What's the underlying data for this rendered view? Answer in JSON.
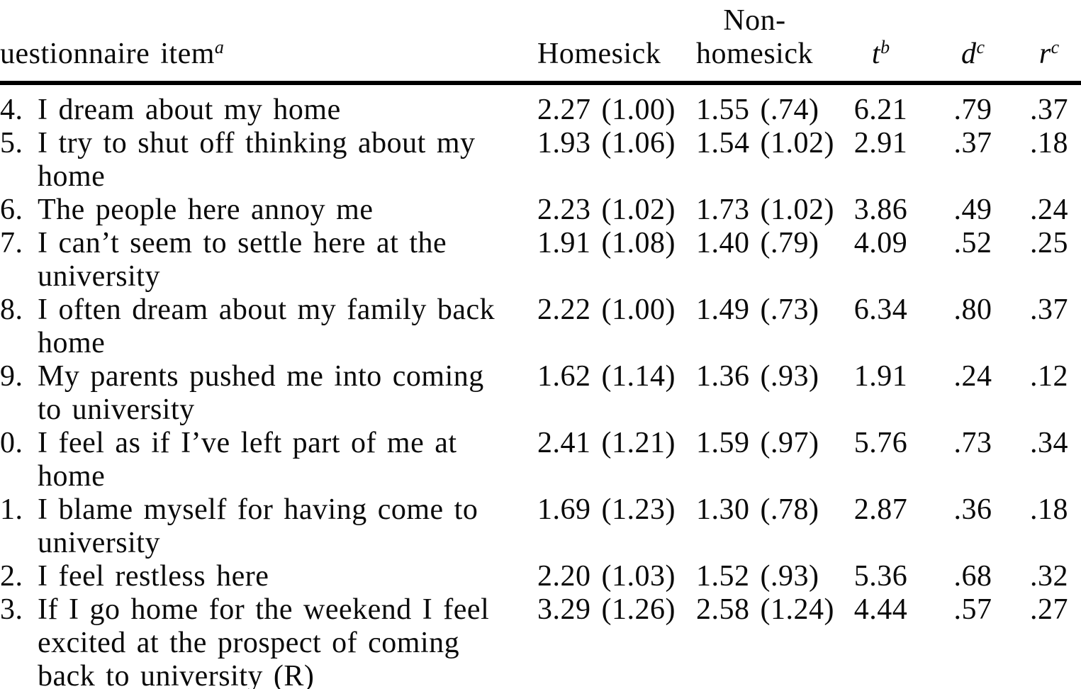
{
  "colors": {
    "text": "#0a0a0a",
    "background": "#ffffff",
    "header_rule": "#000000"
  },
  "table": {
    "header": {
      "item_label": "uestionnaire item",
      "item_sup": "a",
      "homesick": "Homesick",
      "non_line1": "Non-",
      "non_line2": "homesick",
      "t_label": "t",
      "t_sup": "b",
      "d_label": "d",
      "d_sup": "c",
      "r_label": "r",
      "r_sup": "c"
    },
    "rows": [
      {
        "num": "4.",
        "item": [
          "I dream about my home"
        ],
        "homesick": "2.27 (1.00)",
        "nonhomesick": "1.55 (.74)",
        "t": "6.21",
        "d": ".79",
        "r": ".37"
      },
      {
        "num": "5.",
        "item": [
          "I try to shut off thinking about my",
          "home"
        ],
        "homesick": "1.93 (1.06)",
        "nonhomesick": "1.54 (1.02)",
        "t": "2.91",
        "d": ".37",
        "r": ".18"
      },
      {
        "num": "6.",
        "item": [
          "The people here annoy me"
        ],
        "homesick": "2.23 (1.02)",
        "nonhomesick": "1.73 (1.02)",
        "t": "3.86",
        "d": ".49",
        "r": ".24"
      },
      {
        "num": "7.",
        "item": [
          "I can’t seem to settle here at the",
          "university"
        ],
        "homesick": "1.91 (1.08)",
        "nonhomesick": "1.40 (.79)",
        "t": "4.09",
        "d": ".52",
        "r": ".25"
      },
      {
        "num": "8.",
        "item": [
          "I often dream about my family back",
          "home"
        ],
        "homesick": "2.22 (1.00)",
        "nonhomesick": "1.49 (.73)",
        "t": "6.34",
        "d": ".80",
        "r": ".37"
      },
      {
        "num": "9.",
        "item": [
          "My parents pushed me into coming",
          "to university"
        ],
        "homesick": "1.62 (1.14)",
        "nonhomesick": "1.36 (.93)",
        "t": "1.91",
        "d": ".24",
        "r": ".12"
      },
      {
        "num": "0.",
        "item": [
          "I feel as if I’ve left part of me at",
          "home"
        ],
        "homesick": "2.41 (1.21)",
        "nonhomesick": "1.59 (.97)",
        "t": "5.76",
        "d": ".73",
        "r": ".34"
      },
      {
        "num": "1.",
        "item": [
          "I blame myself for having come to",
          "university"
        ],
        "homesick": "1.69 (1.23)",
        "nonhomesick": "1.30 (.78)",
        "t": "2.87",
        "d": ".36",
        "r": ".18"
      },
      {
        "num": "2.",
        "item": [
          "I feel restless here"
        ],
        "homesick": "2.20 (1.03)",
        "nonhomesick": "1.52 (.93)",
        "t": "5.36",
        "d": ".68",
        "r": ".32"
      },
      {
        "num": "3.",
        "item": [
          "If I go home for the weekend I feel",
          "excited at the prospect of coming",
          "back to university (R)"
        ],
        "homesick": "3.29 (1.26)",
        "nonhomesick": "2.58 (1.24)",
        "t": "4.44",
        "d": ".57",
        "r": ".27"
      }
    ]
  }
}
